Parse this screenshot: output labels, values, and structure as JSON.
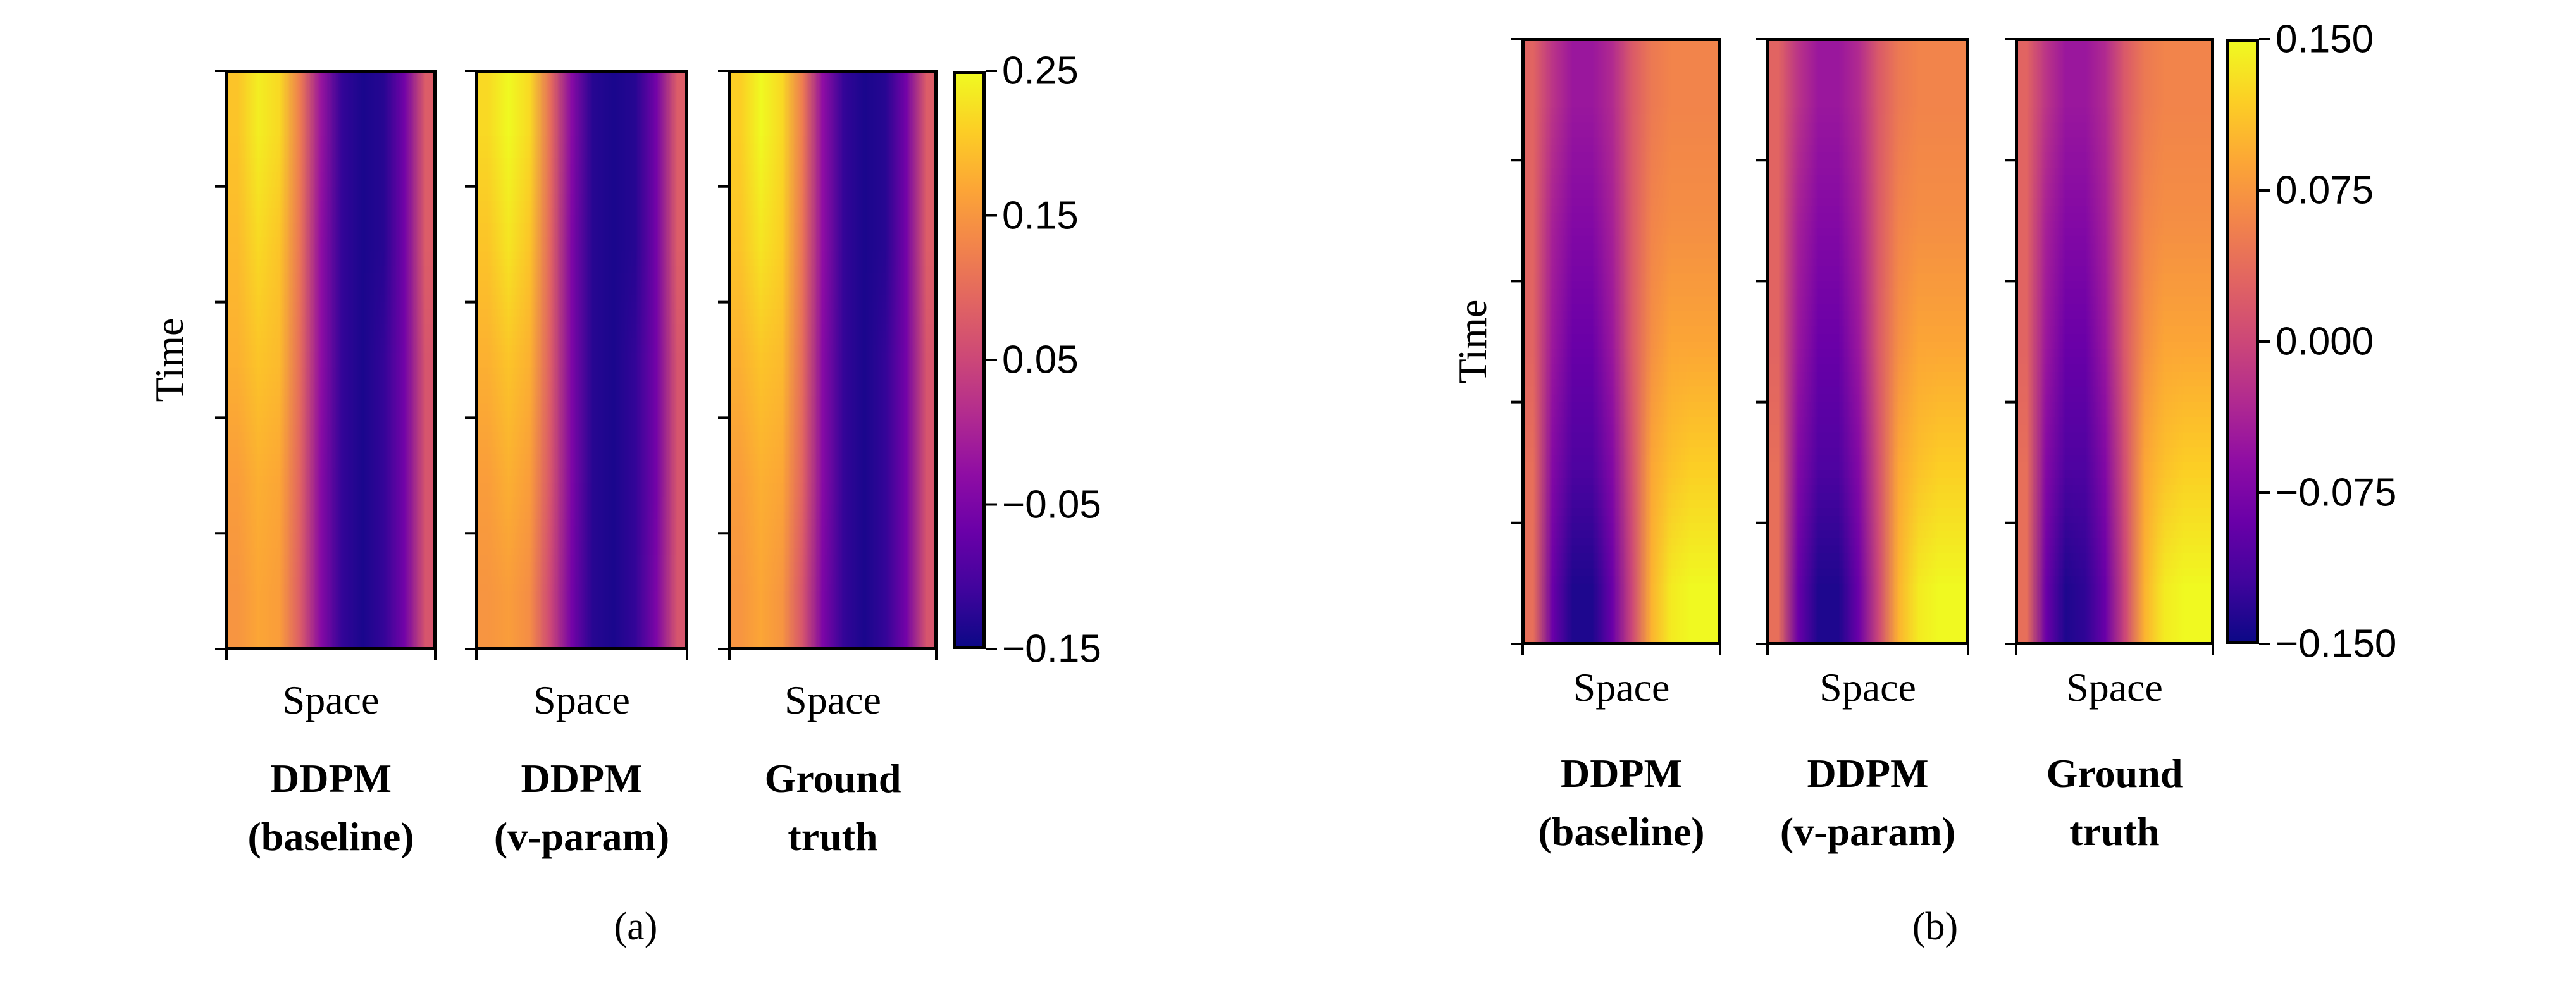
{
  "chart_data": [
    {
      "type": "heatmap",
      "panel_caption": "(a)",
      "ylabel": "Time",
      "xlabel": "Space",
      "colormap": "plasma",
      "colorbar": {
        "range": [
          -0.15,
          0.25
        ],
        "ticks": [
          "0.25",
          "0.15",
          "0.05",
          "−0.05",
          "−0.15"
        ],
        "tick_values": [
          0.25,
          0.15,
          0.05,
          -0.05,
          -0.15
        ]
      },
      "subplots": [
        {
          "title_line1": "DDPM",
          "title_line2": "(baseline)",
          "values": [
            [
              0.2,
              0.24,
              0.22,
              0.12,
              -0.02,
              -0.12,
              -0.14,
              -0.13,
              -0.06,
              0.08
            ],
            [
              0.19,
              0.22,
              0.2,
              0.11,
              -0.03,
              -0.12,
              -0.14,
              -0.13,
              -0.06,
              0.08
            ],
            [
              0.18,
              0.2,
              0.19,
              0.1,
              -0.03,
              -0.12,
              -0.14,
              -0.12,
              -0.06,
              0.07
            ],
            [
              0.16,
              0.18,
              0.17,
              0.09,
              -0.04,
              -0.12,
              -0.14,
              -0.12,
              -0.06,
              0.07
            ],
            [
              0.15,
              0.17,
              0.16,
              0.08,
              -0.04,
              -0.12,
              -0.14,
              -0.12,
              -0.06,
              0.07
            ]
          ]
        },
        {
          "title_line1": "DDPM",
          "title_line2": "(v-param)",
          "values": [
            [
              0.22,
              0.25,
              0.22,
              0.1,
              -0.04,
              -0.13,
              -0.14,
              -0.13,
              -0.06,
              0.08
            ],
            [
              0.2,
              0.23,
              0.2,
              0.09,
              -0.05,
              -0.13,
              -0.14,
              -0.13,
              -0.06,
              0.08
            ],
            [
              0.18,
              0.2,
              0.18,
              0.08,
              -0.05,
              -0.13,
              -0.14,
              -0.12,
              -0.06,
              0.07
            ],
            [
              0.16,
              0.18,
              0.16,
              0.07,
              -0.05,
              -0.13,
              -0.14,
              -0.12,
              -0.06,
              0.07
            ],
            [
              0.15,
              0.16,
              0.14,
              0.05,
              -0.06,
              -0.13,
              -0.14,
              -0.12,
              -0.05,
              0.07
            ]
          ]
        },
        {
          "title_line1": "Ground",
          "title_line2": "truth",
          "values": [
            [
              0.21,
              0.25,
              0.22,
              0.12,
              -0.03,
              -0.12,
              -0.14,
              -0.13,
              -0.06,
              0.08
            ],
            [
              0.2,
              0.23,
              0.21,
              0.11,
              -0.03,
              -0.12,
              -0.14,
              -0.13,
              -0.06,
              0.08
            ],
            [
              0.18,
              0.2,
              0.19,
              0.1,
              -0.04,
              -0.12,
              -0.14,
              -0.12,
              -0.06,
              0.07
            ],
            [
              0.16,
              0.18,
              0.17,
              0.09,
              -0.04,
              -0.12,
              -0.14,
              -0.12,
              -0.06,
              0.07
            ],
            [
              0.15,
              0.17,
              0.15,
              0.07,
              -0.05,
              -0.12,
              -0.14,
              -0.12,
              -0.06,
              0.07
            ]
          ]
        }
      ]
    },
    {
      "type": "heatmap",
      "panel_caption": "(b)",
      "ylabel": "Time",
      "xlabel": "Space",
      "colormap": "plasma",
      "colorbar": {
        "range": [
          -0.15,
          0.15
        ],
        "ticks": [
          "0.150",
          "0.075",
          "0.000",
          "−0.075",
          "−0.150"
        ],
        "tick_values": [
          0.15,
          0.075,
          0.0,
          -0.075,
          -0.15
        ]
      },
      "subplots": [
        {
          "title_line1": "DDPM",
          "title_line2": "(baseline)",
          "values": [
            [
              0.03,
              -0.02,
              -0.05,
              -0.05,
              -0.03,
              0.02,
              0.05,
              0.06,
              0.06,
              0.06
            ],
            [
              0.03,
              -0.04,
              -0.07,
              -0.07,
              -0.04,
              0.02,
              0.06,
              0.07,
              0.07,
              0.07
            ],
            [
              0.03,
              -0.05,
              -0.09,
              -0.09,
              -0.05,
              0.02,
              0.07,
              0.09,
              0.09,
              0.09
            ],
            [
              0.04,
              -0.07,
              -0.11,
              -0.11,
              -0.07,
              0.01,
              0.09,
              0.11,
              0.12,
              0.12
            ],
            [
              0.04,
              -0.09,
              -0.14,
              -0.14,
              -0.09,
              0.0,
              0.1,
              0.14,
              0.15,
              0.15
            ]
          ]
        },
        {
          "title_line1": "DDPM",
          "title_line2": "(v-param)",
          "values": [
            [
              0.03,
              -0.02,
              -0.05,
              -0.05,
              -0.03,
              0.02,
              0.05,
              0.06,
              0.06,
              0.06
            ],
            [
              0.03,
              -0.04,
              -0.07,
              -0.07,
              -0.04,
              0.02,
              0.06,
              0.07,
              0.07,
              0.07
            ],
            [
              0.03,
              -0.05,
              -0.09,
              -0.09,
              -0.05,
              0.02,
              0.07,
              0.09,
              0.09,
              0.09
            ],
            [
              0.04,
              -0.07,
              -0.11,
              -0.11,
              -0.07,
              0.01,
              0.09,
              0.11,
              0.12,
              0.12
            ],
            [
              0.04,
              -0.09,
              -0.14,
              -0.14,
              -0.09,
              0.0,
              0.1,
              0.14,
              0.15,
              0.15
            ]
          ]
        },
        {
          "title_line1": "Ground",
          "title_line2": "truth",
          "values": [
            [
              0.03,
              -0.02,
              -0.05,
              -0.05,
              -0.03,
              0.02,
              0.05,
              0.06,
              0.06,
              0.06
            ],
            [
              0.03,
              -0.04,
              -0.07,
              -0.07,
              -0.04,
              0.02,
              0.06,
              0.07,
              0.07,
              0.07
            ],
            [
              0.03,
              -0.05,
              -0.09,
              -0.09,
              -0.05,
              0.02,
              0.07,
              0.09,
              0.09,
              0.09
            ],
            [
              0.04,
              -0.07,
              -0.11,
              -0.11,
              -0.07,
              0.01,
              0.09,
              0.11,
              0.12,
              0.12
            ],
            [
              0.04,
              -0.09,
              -0.14,
              -0.13,
              -0.09,
              0.0,
              0.1,
              0.14,
              0.15,
              0.15
            ]
          ]
        }
      ]
    }
  ]
}
